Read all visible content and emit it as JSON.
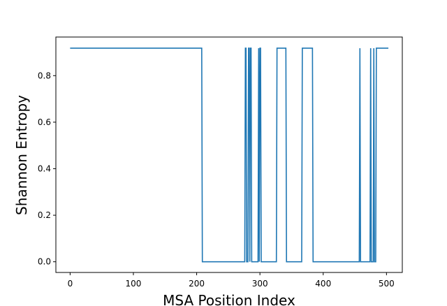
{
  "chart_data": {
    "type": "line",
    "title": "",
    "xlabel": "MSA Position Index",
    "ylabel": "Shannon Entropy",
    "xlim": [
      -22.5,
      525
    ],
    "ylim": [
      -0.046,
      0.966
    ],
    "x_ticks": [
      0,
      100,
      200,
      300,
      400,
      500
    ],
    "y_ticks": [
      0.0,
      0.2,
      0.4,
      0.6,
      0.8
    ],
    "y_tick_labels": [
      "0.0",
      "0.2",
      "0.4",
      "0.6",
      "0.8"
    ],
    "grid": false,
    "legend": "none",
    "line_color": "#1f77b4",
    "series": [
      {
        "x": [
          0,
          208,
          209,
          276,
          277,
          278,
          279,
          280,
          281,
          282,
          283,
          284,
          285,
          286,
          287,
          288,
          297,
          298,
          299,
          300,
          301,
          302,
          326,
          327,
          341,
          342,
          366,
          367,
          383,
          384,
          457,
          458,
          459,
          474,
          475,
          476,
          479,
          480,
          481,
          483,
          484,
          503
        ],
        "y": [
          0.918,
          0.918,
          0.0,
          0.0,
          0.918,
          0.918,
          0.0,
          0.0,
          0.0,
          0.918,
          0.918,
          0.0,
          0.918,
          0.918,
          0.0,
          0.0,
          0.0,
          0.918,
          0.0,
          0.918,
          0.918,
          0.0,
          0.0,
          0.918,
          0.918,
          0.0,
          0.0,
          0.918,
          0.918,
          0.0,
          0.0,
          0.918,
          0.0,
          0.0,
          0.918,
          0.0,
          0.0,
          0.918,
          0.0,
          0.0,
          0.918,
          0.918
        ]
      }
    ]
  }
}
